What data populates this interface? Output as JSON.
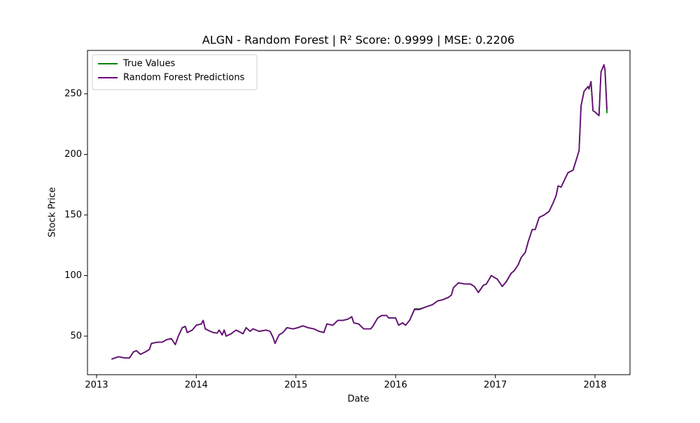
{
  "chart_data": {
    "type": "line",
    "title": "ALGN - Random Forest | R² Score: 0.9999 | MSE: 0.2206",
    "x_label": "Date",
    "y_label": "Stock Price",
    "x": [
      2013.15,
      2013.22,
      2013.28,
      2013.33,
      2013.37,
      2013.4,
      2013.44,
      2013.49,
      2013.53,
      2013.55,
      2013.61,
      2013.66,
      2013.7,
      2013.75,
      2013.79,
      2013.82,
      2013.86,
      2013.89,
      2013.91,
      2013.96,
      2014.0,
      2014.05,
      2014.07,
      2014.09,
      2014.14,
      2014.17,
      2014.21,
      2014.23,
      2014.26,
      2014.28,
      2014.3,
      2014.35,
      2014.4,
      2014.47,
      2014.5,
      2014.54,
      2014.57,
      2014.63,
      2014.7,
      2014.74,
      2014.77,
      2014.79,
      2014.83,
      2014.87,
      2014.91,
      2014.97,
      2015.02,
      2015.07,
      2015.12,
      2015.18,
      2015.23,
      2015.28,
      2015.31,
      2015.37,
      2015.42,
      2015.47,
      2015.52,
      2015.56,
      2015.58,
      2015.63,
      2015.68,
      2015.72,
      2015.75,
      2015.77,
      2015.82,
      2015.86,
      2015.91,
      2015.93,
      2016.0,
      2016.03,
      2016.07,
      2016.1,
      2016.14,
      2016.19,
      2016.24,
      2016.3,
      2016.37,
      2016.42,
      2016.47,
      2016.53,
      2016.56,
      2016.58,
      2016.63,
      2016.7,
      2016.75,
      2016.79,
      2016.83,
      2016.88,
      2016.91,
      2016.96,
      2017.02,
      2017.07,
      2017.11,
      2017.16,
      2017.19,
      2017.23,
      2017.26,
      2017.3,
      2017.33,
      2017.37,
      2017.4,
      2017.44,
      2017.49,
      2017.54,
      2017.58,
      2017.61,
      2017.63,
      2017.66,
      2017.7,
      2017.73,
      2017.78,
      2017.81,
      2017.84,
      2017.86,
      2017.89,
      2017.93,
      2017.94,
      2017.96,
      2017.98,
      2018.0,
      2018.04,
      2018.06,
      2018.07,
      2018.09,
      2018.1,
      2018.12
    ],
    "series": [
      {
        "name": "True Values",
        "color": "#008000",
        "values": [
          31,
          33,
          32,
          32,
          37,
          38,
          35,
          37,
          39,
          44,
          45,
          45,
          47,
          48,
          43,
          50,
          57,
          58,
          53,
          55,
          59,
          60,
          63,
          56,
          54,
          53,
          52.5,
          55,
          51,
          55,
          50,
          52,
          55,
          52,
          57,
          54,
          56,
          54,
          55,
          54,
          49,
          44,
          51,
          53,
          57,
          56,
          57,
          58.5,
          57,
          56,
          54,
          53,
          60,
          59,
          63,
          63,
          64,
          66,
          61,
          60,
          56,
          56,
          56,
          58,
          65,
          67,
          67,
          65,
          65,
          59,
          61,
          59,
          63,
          72.5,
          72.5,
          74,
          76,
          79,
          80,
          82,
          84,
          90,
          94,
          93,
          93,
          91,
          86,
          92,
          93,
          100,
          97,
          91,
          95,
          102,
          104,
          109,
          115,
          119,
          128,
          138,
          138,
          148,
          150,
          153,
          160,
          166,
          174,
          173,
          180,
          185,
          187,
          195,
          203,
          240,
          252,
          256,
          254,
          260,
          236,
          235,
          232,
          268,
          270,
          274,
          270,
          234
        ]
      },
      {
        "name": "Random Forest Predictions",
        "color": "#6a0a7a",
        "values": [
          31,
          33,
          32,
          32,
          37,
          38,
          35,
          37,
          39,
          44,
          45,
          45,
          47,
          48,
          43,
          50,
          57,
          58,
          53,
          55,
          59,
          60,
          63,
          56,
          54,
          53,
          52.5,
          55,
          51,
          55,
          50,
          52,
          55,
          52,
          57,
          54,
          56,
          54,
          55,
          54,
          49,
          44,
          51,
          53,
          57,
          56,
          57,
          58.5,
          57,
          56,
          54,
          53,
          60,
          59,
          63,
          63,
          64,
          66,
          61,
          60,
          56,
          56,
          56,
          58,
          65,
          67,
          67,
          65,
          65,
          59,
          61,
          59,
          63,
          72,
          72,
          74,
          76,
          79,
          80,
          82,
          84,
          90,
          94,
          93,
          93,
          91,
          86,
          92,
          93,
          100,
          97,
          91,
          95,
          102,
          104,
          109,
          115,
          119,
          128,
          138,
          138,
          148,
          150,
          153,
          160,
          166,
          174,
          173,
          180,
          185,
          187,
          195,
          203,
          240,
          252,
          256,
          254,
          260,
          236,
          235,
          232,
          268,
          270,
          274,
          270,
          237
        ]
      }
    ],
    "xlim": [
      2012.909,
      2018.351
    ],
    "xticks": [
      2013,
      2014,
      2015,
      2016,
      2017,
      2018
    ],
    "ylim": [
      18.2,
      285.8
    ],
    "yticks": [
      50,
      100,
      150,
      200,
      250
    ],
    "grid": false,
    "legend": "upper left"
  }
}
